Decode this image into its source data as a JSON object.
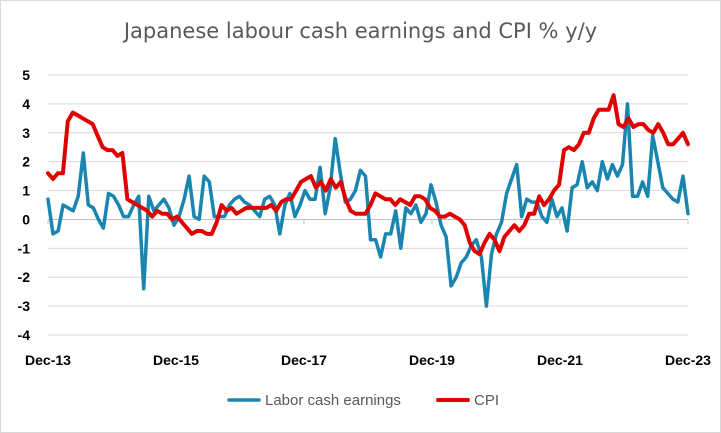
{
  "chart_data": {
    "type": "line",
    "title": "Japanese labour cash earnings and CPI % y/y",
    "xlabel": "",
    "ylabel": "",
    "ylim": [
      -4,
      5
    ],
    "yticks": [
      -4,
      -3,
      -2,
      -1,
      0,
      1,
      2,
      3,
      4,
      5
    ],
    "x_start": "Dec-13",
    "x_end": "Dec-23",
    "x_tick_labels": [
      "Dec-13",
      "Dec-15",
      "Dec-17",
      "Dec-19",
      "Dec-21",
      "Dec-23"
    ],
    "grid": true,
    "legend_position": "bottom",
    "series": [
      {
        "name": "Labor cash earnings",
        "color": "#1a86b0",
        "values": [
          0.7,
          -0.5,
          -0.4,
          0.5,
          0.4,
          0.3,
          0.8,
          2.3,
          0.5,
          0.4,
          0.0,
          -0.3,
          0.9,
          0.8,
          0.5,
          0.1,
          0.1,
          0.5,
          0.8,
          -2.4,
          0.8,
          0.3,
          0.5,
          0.7,
          0.4,
          -0.2,
          0.1,
          0.7,
          1.5,
          0.1,
          0.0,
          1.5,
          1.3,
          0.1,
          0.1,
          0.1,
          0.5,
          0.7,
          0.8,
          0.6,
          0.5,
          0.3,
          0.1,
          0.7,
          0.8,
          0.5,
          -0.5,
          0.5,
          0.9,
          0.1,
          0.5,
          1.0,
          0.7,
          0.7,
          1.8,
          0.2,
          1.1,
          2.8,
          1.6,
          0.6,
          0.7,
          1.0,
          1.7,
          1.5,
          -0.7,
          -0.7,
          -1.3,
          -0.5,
          -0.5,
          0.3,
          -1.0,
          0.4,
          0.2,
          0.5,
          -0.1,
          0.2,
          1.2,
          0.6,
          -0.2,
          -0.6,
          -2.3,
          -2.0,
          -1.5,
          -1.3,
          -0.9,
          -0.7,
          -1.3,
          -3.0,
          -1.2,
          -0.5,
          -0.1,
          0.9,
          1.4,
          1.9,
          0.1,
          0.7,
          0.6,
          0.6,
          0.1,
          -0.1,
          0.7,
          0.1,
          0.4,
          -0.4,
          1.1,
          1.2,
          2.0,
          1.1,
          1.3,
          1.0,
          2.0,
          1.4,
          1.9,
          1.5,
          1.9,
          4.0,
          0.8,
          0.8,
          1.3,
          0.8,
          2.9,
          2.0,
          1.1,
          0.9,
          0.7,
          0.6,
          1.5,
          0.2
        ]
      },
      {
        "name": "CPI",
        "color": "#e00000",
        "values": [
          1.6,
          1.4,
          1.6,
          1.6,
          3.4,
          3.7,
          3.6,
          3.5,
          3.4,
          3.3,
          2.9,
          2.5,
          2.4,
          2.4,
          2.2,
          2.3,
          0.7,
          0.6,
          0.5,
          0.4,
          0.3,
          0.1,
          0.3,
          0.2,
          0.2,
          0.0,
          0.1,
          -0.1,
          -0.3,
          -0.5,
          -0.4,
          -0.4,
          -0.5,
          -0.5,
          -0.1,
          0.5,
          0.3,
          0.4,
          0.2,
          0.3,
          0.4,
          0.4,
          0.4,
          0.4,
          0.4,
          0.5,
          0.3,
          0.6,
          0.7,
          0.7,
          1.0,
          1.3,
          1.4,
          1.5,
          1.1,
          1.3,
          1.0,
          1.4,
          1.1,
          1.3,
          0.7,
          0.3,
          0.2,
          0.2,
          0.2,
          0.5,
          0.9,
          0.8,
          0.7,
          0.7,
          0.5,
          0.7,
          0.6,
          0.5,
          0.8,
          0.8,
          0.7,
          0.4,
          0.3,
          0.1,
          0.1,
          0.2,
          0.1,
          0.0,
          -0.2,
          -0.8,
          -1.1,
          -1.2,
          -0.8,
          -0.5,
          -0.7,
          -1.1,
          -0.6,
          -0.4,
          -0.2,
          -0.4,
          -0.2,
          0.2,
          0.2,
          0.8,
          0.5,
          0.7,
          1.0,
          1.2,
          2.4,
          2.5,
          2.4,
          2.6,
          3.0,
          3.0,
          3.5,
          3.8,
          3.8,
          3.8,
          4.3,
          3.3,
          3.2,
          3.5,
          3.2,
          3.3,
          3.3,
          3.1,
          3.0,
          3.3,
          3.0,
          2.6,
          2.6,
          2.8,
          3.0,
          2.6
        ]
      }
    ]
  }
}
